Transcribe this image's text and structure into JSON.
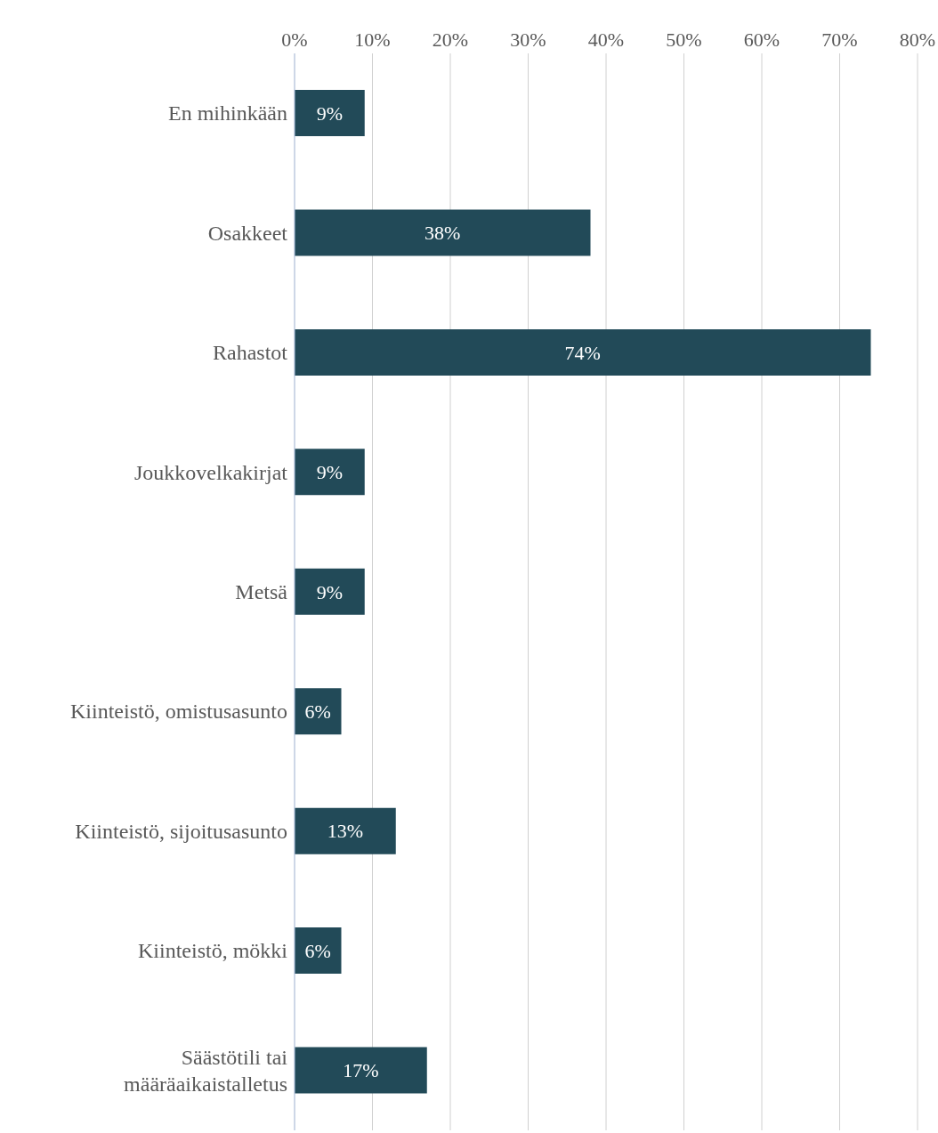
{
  "chart_data": {
    "type": "bar",
    "orientation": "horizontal",
    "categories": [
      "En mihinkään",
      "Osakkeet",
      "Rahastot",
      "Joukkovelkakirjat",
      "Metsä",
      "Kiinteistö, omistusasunto",
      "Kiinteistö, sijoitusasunto",
      "Kiinteistö, mökki",
      "Säästötili tai määräaikaistalletus"
    ],
    "values": [
      9,
      38,
      74,
      9,
      9,
      6,
      13,
      6,
      17
    ],
    "value_labels": [
      "9%",
      "38%",
      "74%",
      "9%",
      "9%",
      "6%",
      "13%",
      "6%",
      "17%"
    ],
    "color": "#224a58",
    "xlim": [
      0,
      80
    ],
    "xticks": [
      {
        "value": 0,
        "label": "0%"
      },
      {
        "value": 10,
        "label": "10%"
      },
      {
        "value": 20,
        "label": "20%"
      },
      {
        "value": 30,
        "label": "30%"
      },
      {
        "value": 40,
        "label": "40%"
      },
      {
        "value": 50,
        "label": "50%"
      },
      {
        "value": 60,
        "label": "60%"
      },
      {
        "value": 70,
        "label": "70%"
      },
      {
        "value": 80,
        "label": "80%"
      }
    ],
    "grid": "x"
  }
}
